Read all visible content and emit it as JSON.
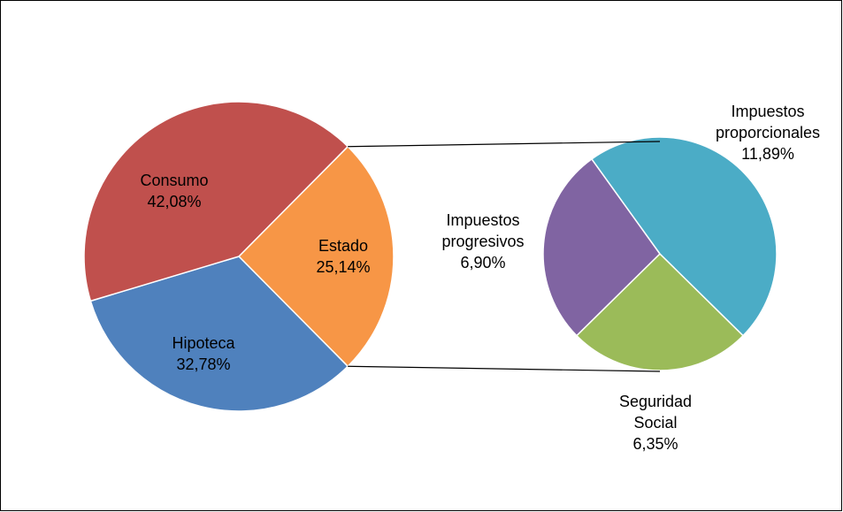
{
  "chart_data": {
    "type": "pie-of-pie",
    "main": {
      "categories": [
        "Estado",
        "Hipoteca",
        "Consumo"
      ],
      "values": [
        25.14,
        32.78,
        42.08
      ],
      "value_labels": [
        "25,14%",
        "32,78%",
        "42,08%"
      ],
      "colors": [
        "#f79646",
        "#4f81bd",
        "#c0504d"
      ]
    },
    "secondary": {
      "categories": [
        "Seguridad Social",
        "Impuestos progresivos",
        "Impuestos proporcionales"
      ],
      "values": [
        6.35,
        6.9,
        11.89
      ],
      "value_labels": [
        "6,35%",
        "6,90%",
        "11,89%"
      ],
      "colors": [
        "#9bbb59",
        "#8064a2",
        "#4bacc6"
      ]
    }
  }
}
